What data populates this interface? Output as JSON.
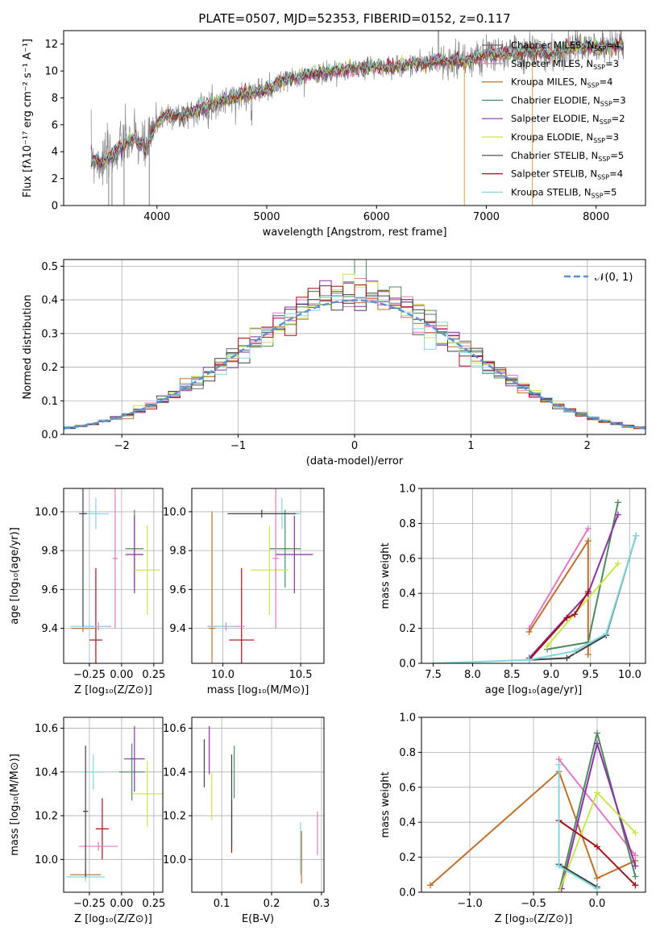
{
  "title": "PLATE=0507, MJD=52353, FIBERID=0152, z=0.117",
  "colors": {
    "c0": "#696969",
    "c1": "#e377c2",
    "c2": "#c0702a",
    "c3": "#4e8a5c",
    "c4": "#8b2fa8",
    "c5": "#c7e84a",
    "c6": "#404040",
    "c7": "#a50f15",
    "c8": "#7fd9de",
    "data": "#808080",
    "normal": "#5b8fd6"
  },
  "spectrum": {
    "xlabel": "wavelength [Angstrom, rest frame]",
    "ylabel": "Flux [fλ10⁻¹⁷ erg cm⁻² s⁻¹ A⁻¹]",
    "xlim": [
      3150,
      8450
    ],
    "ylim": [
      0,
      13
    ],
    "xticks": [
      "4000",
      "5000",
      "6000",
      "7000",
      "8000"
    ],
    "xtick_vals": [
      4000,
      5000,
      6000,
      7000,
      8000
    ],
    "yticks": [
      "0",
      "2",
      "4",
      "6",
      "8",
      "10",
      "12"
    ],
    "ytick_vals": [
      0,
      2,
      4,
      6,
      8,
      10,
      12
    ],
    "legend": [
      "Chabrier MILES, N_SSP=4",
      "Salpeter MILES, N_SSP=3",
      "Kroupa MILES, N_SSP=4",
      "Chabrier ELODIE, N_SSP=3",
      "Salpeter ELODIE, N_SSP=2",
      "Kroupa ELODIE, N_SSP=3",
      "Chabrier STELIB, N_SSP=5",
      "Salpeter STELIB, N_SSP=4",
      "Kroupa STELIB, N_SSP=5"
    ],
    "legend_text": [
      [
        "Chabrier MILES, N",
        "SSP",
        "=4"
      ],
      [
        "Salpeter MILES, N",
        "SSP",
        "=3"
      ],
      [
        "Kroupa MILES, N",
        "SSP",
        "=4"
      ],
      [
        "Chabrier ELODIE, N",
        "SSP",
        "=3"
      ],
      [
        "Salpeter ELODIE, N",
        "SSP",
        "=2"
      ],
      [
        "Kroupa ELODIE, N",
        "SSP",
        "=3"
      ],
      [
        "Chabrier STELIB, N",
        "SSP",
        "=5"
      ],
      [
        "Salpeter STELIB, N",
        "SSP",
        "=4"
      ],
      [
        "Kroupa STELIB, N",
        "SSP",
        "=5"
      ]
    ]
  },
  "chart_data": [
    {
      "type": "line",
      "title": "PLATE=0507, MJD=52353, FIBERID=0152, z=0.117",
      "xlabel": "wavelength [Angstrom, rest frame]",
      "ylabel": "Flux",
      "xlim": [
        3150,
        8450
      ],
      "ylim": [
        0,
        13
      ],
      "continuum": {
        "x": [
          3400,
          3500,
          3600,
          3700,
          3800,
          3900,
          4000,
          4100,
          4200,
          4400,
          4600,
          4800,
          5000,
          5200,
          5400,
          5600,
          5800,
          6000,
          6200,
          6400,
          6600,
          6800,
          7000,
          7200,
          7400,
          7600,
          7800,
          8000,
          8200
        ],
        "y": [
          3.6,
          3.2,
          3.8,
          4.5,
          5.0,
          4.2,
          6.2,
          6.8,
          6.6,
          7.2,
          7.8,
          8.3,
          8.6,
          9.4,
          9.7,
          10.0,
          10.2,
          10.3,
          10.3,
          10.6,
          10.8,
          10.7,
          11.2,
          11.3,
          11.5,
          11.2,
          11.8,
          11.7,
          11.9
        ]
      }
    },
    {
      "type": "bar",
      "xlabel": "(data-model)/error",
      "ylabel": "Normed distribution",
      "xlim": [
        -2.5,
        2.5
      ],
      "ylim": [
        0,
        0.52
      ],
      "legend": "𝒩(0, 1)",
      "bin_width": 0.1
    },
    {
      "type": "scatter",
      "xlabel": "Z [log10(Z/Z⊙)]",
      "ylabel": "age [log10(age/yr)]",
      "xlim": [
        -0.45,
        0.32
      ],
      "ylim": [
        9.22,
        10.12
      ],
      "points": [
        {
          "x": -0.2,
          "y": 9.34,
          "xerr": 0.05,
          "yerr": 0.37,
          "c": "c7"
        },
        {
          "x": 0.1,
          "y": 9.81,
          "xerr": 0.07,
          "yerr": 0.2,
          "c": "c3"
        },
        {
          "x": 0.1,
          "y": 9.78,
          "xerr": 0.07,
          "yerr": 0.2,
          "c": "c4"
        },
        {
          "x": 0.2,
          "y": 9.7,
          "xerr": 0.1,
          "yerr": 0.23,
          "c": "c5"
        },
        {
          "x": -0.18,
          "y": 9.41,
          "xerr": 0.1,
          "yerr": 0.02,
          "c": "c1"
        },
        {
          "x": -0.3,
          "y": 9.4,
          "xerr": 0.09,
          "yerr": 0.02,
          "c": "c2"
        },
        {
          "x": -0.25,
          "y": 9.41,
          "xerr": 0.15,
          "yerr": 0.02,
          "c": "c8"
        },
        {
          "x": -0.2,
          "y": 9.99,
          "xerr": 0.1,
          "yerr": 0.08,
          "c": "c8"
        },
        {
          "x": -0.05,
          "y": 9.76,
          "xerr": 0.02,
          "yerr": 0.36,
          "c": "c1"
        },
        {
          "x": -0.3,
          "y": 9.99,
          "xerr": 0.03,
          "yerr": 0.58,
          "c": "c6"
        }
      ]
    },
    {
      "type": "scatter",
      "xlabel": "mass [log10(M/M⊙)]",
      "ylabel": "",
      "xlim": [
        9.8,
        10.65
      ],
      "ylim": [
        9.22,
        10.12
      ],
      "points": [
        {
          "x": 10.12,
          "y": 9.34,
          "xerr": 0.08,
          "yerr": 0.37,
          "c": "c7"
        },
        {
          "x": 10.4,
          "y": 9.81,
          "xerr": 0.1,
          "yerr": 0.2,
          "c": "c3"
        },
        {
          "x": 10.46,
          "y": 9.78,
          "xerr": 0.12,
          "yerr": 0.2,
          "c": "c4"
        },
        {
          "x": 10.3,
          "y": 9.7,
          "xerr": 0.12,
          "yerr": 0.23,
          "c": "c5"
        },
        {
          "x": 10.02,
          "y": 9.41,
          "xerr": 0.12,
          "yerr": 0.02,
          "c": "c1"
        },
        {
          "x": 9.93,
          "y": 9.4,
          "xerr": 0.02,
          "yerr": 0.6,
          "c": "c2"
        },
        {
          "x": 10.0,
          "y": 9.41,
          "xerr": 0.08,
          "yerr": 0.02,
          "c": "c8"
        },
        {
          "x": 10.38,
          "y": 9.99,
          "xerr": 0.12,
          "yerr": 0.08,
          "c": "c8"
        },
        {
          "x": 10.34,
          "y": 9.76,
          "xerr": 0.02,
          "yerr": 0.36,
          "c": "c1"
        },
        {
          "x": 10.25,
          "y": 9.99,
          "xerr": 0.22,
          "yerr": 0.02,
          "c": "c6"
        }
      ]
    },
    {
      "type": "line",
      "xlabel": "age [log10(age/yr)]",
      "ylabel": "mass weight",
      "xlim": [
        7.35,
        10.2
      ],
      "ylim": [
        0,
        1.0
      ],
      "series": [
        {
          "c": "c1",
          "x": [
            8.72,
            9.47
          ],
          "y": [
            0.2,
            0.77
          ]
        },
        {
          "c": "c2",
          "x": [
            8.72,
            9.47,
            9.47
          ],
          "y": [
            0.18,
            0.7,
            0.05
          ]
        },
        {
          "c": "c3",
          "x": [
            8.95,
            9.47,
            9.85
          ],
          "y": [
            0.08,
            0.12,
            0.92
          ]
        },
        {
          "c": "c4",
          "x": [
            8.72,
            9.47,
            9.85
          ],
          "y": [
            0.03,
            0.4,
            0.85
          ]
        },
        {
          "c": "c5",
          "x": [
            8.95,
            9.85
          ],
          "y": [
            0.1,
            0.57
          ]
        },
        {
          "c": "c6",
          "x": [
            8.72,
            9.2,
            9.7,
            10.08
          ],
          "y": [
            0.02,
            0.03,
            0.16,
            0.73
          ]
        },
        {
          "c": "c7",
          "x": [
            8.72,
            9.2,
            9.3,
            9.47
          ],
          "y": [
            0.02,
            0.26,
            0.28,
            0.41
          ]
        },
        {
          "c": "c8",
          "x": [
            7.5,
            8.72,
            9.3,
            9.7,
            10.08
          ],
          "y": [
            0.0,
            0.02,
            0.07,
            0.17,
            0.73
          ]
        }
      ]
    },
    {
      "type": "scatter",
      "xlabel": "Z [log10(Z/Z⊙)]",
      "ylabel": "mass [log10(M/M⊙)]",
      "xlim": [
        -0.45,
        0.32
      ],
      "ylim": [
        9.85,
        10.65
      ],
      "points": [
        {
          "x": -0.15,
          "y": 10.14,
          "xerr": 0.05,
          "yerr": 0.14,
          "c": "c7"
        },
        {
          "x": 0.08,
          "y": 10.4,
          "xerr": 0.1,
          "yerr": 0.13,
          "c": "c3"
        },
        {
          "x": 0.1,
          "y": 10.46,
          "xerr": 0.08,
          "yerr": 0.15,
          "c": "c4"
        },
        {
          "x": 0.2,
          "y": 10.3,
          "xerr": 0.12,
          "yerr": 0.15,
          "c": "c5"
        },
        {
          "x": -0.18,
          "y": 10.06,
          "xerr": 0.15,
          "yerr": 0.02,
          "c": "c1"
        },
        {
          "x": -0.28,
          "y": 9.93,
          "xerr": 0.12,
          "yerr": 0.02,
          "c": "c2"
        },
        {
          "x": -0.28,
          "y": 9.92,
          "xerr": 0.15,
          "yerr": 0.02,
          "c": "c8"
        },
        {
          "x": -0.22,
          "y": 10.4,
          "xerr": 0.08,
          "yerr": 0.08,
          "c": "c8"
        },
        {
          "x": -0.28,
          "y": 10.22,
          "xerr": 0.02,
          "yerr": 0.3,
          "c": "c6"
        }
      ]
    },
    {
      "type": "scatter",
      "xlabel": "E(B-V)",
      "ylabel": "",
      "xlim": [
        0.04,
        0.305
      ],
      "ylim": [
        9.85,
        10.65
      ],
      "points": [
        {
          "x": 0.065,
          "y": 10.44,
          "yerr": 0.11,
          "c": "c6"
        },
        {
          "x": 0.075,
          "y": 10.5,
          "yerr": 0.11,
          "c": "c4"
        },
        {
          "x": 0.08,
          "y": 10.29,
          "yerr": 0.11,
          "c": "c5"
        },
        {
          "x": 0.12,
          "y": 10.15,
          "yerr": 0.12,
          "c": "c7"
        },
        {
          "x": 0.125,
          "y": 10.4,
          "yerr": 0.12,
          "c": "c3"
        },
        {
          "x": 0.12,
          "y": 10.27,
          "yerr": 0.21,
          "c": "c6"
        },
        {
          "x": 0.26,
          "y": 10.01,
          "yerr": 0.12,
          "c": "c2"
        },
        {
          "x": 0.258,
          "y": 10.05,
          "yerr": 0.12,
          "c": "c8"
        },
        {
          "x": 0.292,
          "y": 10.12,
          "yerr": 0.1,
          "c": "c1"
        }
      ]
    },
    {
      "type": "line",
      "xlabel": "Z [log10(Z/Z⊙)]",
      "ylabel": "mass weight",
      "xlim": [
        -1.38,
        0.38
      ],
      "ylim": [
        0,
        1.0
      ],
      "series": [
        {
          "c": "c2",
          "x": [
            -1.31,
            -0.3,
            0.0,
            0.3
          ],
          "y": [
            0.04,
            0.69,
            0.08,
            0.18
          ]
        },
        {
          "c": "c1",
          "x": [
            -0.3,
            0.3
          ],
          "y": [
            0.76,
            0.21
          ]
        },
        {
          "c": "c3",
          "x": [
            -0.3,
            0.0,
            0.3
          ],
          "y": [
            0.0,
            0.91,
            0.09
          ]
        },
        {
          "c": "c4",
          "x": [
            -0.28,
            0.0,
            0.3
          ],
          "y": [
            0.02,
            0.85,
            0.15
          ]
        },
        {
          "c": "c5",
          "x": [
            -0.3,
            0.0,
            0.3
          ],
          "y": [
            0.0,
            0.57,
            0.34
          ]
        },
        {
          "c": "c7",
          "x": [
            -0.3,
            0.0,
            0.3
          ],
          "y": [
            0.41,
            0.26,
            0.04
          ]
        },
        {
          "c": "c6",
          "x": [
            -0.3,
            0.0
          ],
          "y": [
            0.16,
            0.03
          ]
        },
        {
          "c": "c8",
          "x": [
            -0.3,
            -0.3,
            0.0
          ],
          "y": [
            0.73,
            0.15,
            0.02
          ]
        }
      ]
    }
  ],
  "panels": {
    "hist": {
      "xticks": [
        "−2",
        "−1",
        "0",
        "1",
        "2"
      ],
      "yticks": [
        "0.0",
        "0.1",
        "0.2",
        "0.3",
        "0.4",
        "0.5"
      ],
      "legend_label": "𝒩(0, 1)",
      "xlabel": "(data-model)/error",
      "ylabel": "Normed distribution"
    },
    "p3": {
      "xlabel": "Z [log₁₀(Z/Z⊙)]",
      "ylabel": "age  [log₁₀(age/yr)]",
      "xticks": [
        "−0.25",
        "0.00",
        "0.25"
      ],
      "yticks": [
        "9.4",
        "9.6",
        "9.8",
        "10.0"
      ]
    },
    "p4": {
      "xlabel": "mass [log₁₀(M/M⊙)]",
      "xticks": [
        "10.0",
        "10.5"
      ],
      "yticks": [
        "9.4",
        "9.6",
        "9.8",
        "10.0"
      ]
    },
    "p5": {
      "xlabel": "age  [log₁₀(age/yr)]",
      "ylabel": "mass weight",
      "xticks": [
        "7.5",
        "8.0",
        "8.5",
        "9.0",
        "9.5",
        "10.0"
      ],
      "yticks": [
        "0.0",
        "0.2",
        "0.4",
        "0.6",
        "0.8",
        "1.0"
      ]
    },
    "p6": {
      "xlabel": "Z [log₁₀(Z/Z⊙)]",
      "ylabel": "mass [log₁₀(M/M⊙)]",
      "xticks": [
        "−0.25",
        "0.00",
        "0.25"
      ],
      "yticks": [
        "10.0",
        "10.2",
        "10.4",
        "10.6"
      ]
    },
    "p7": {
      "xlabel": "E(B-V)",
      "xticks": [
        "0.1",
        "0.2",
        "0.3"
      ],
      "yticks": [
        "10.0",
        "10.2",
        "10.4",
        "10.6"
      ]
    },
    "p8": {
      "xlabel": "Z [log₁₀(Z/Z⊙)]",
      "ylabel": "mass weight",
      "xticks": [
        "−1.0",
        "−0.5",
        "0.0"
      ],
      "yticks": [
        "0.0",
        "0.2",
        "0.4",
        "0.6",
        "0.8",
        "1.0"
      ]
    }
  }
}
